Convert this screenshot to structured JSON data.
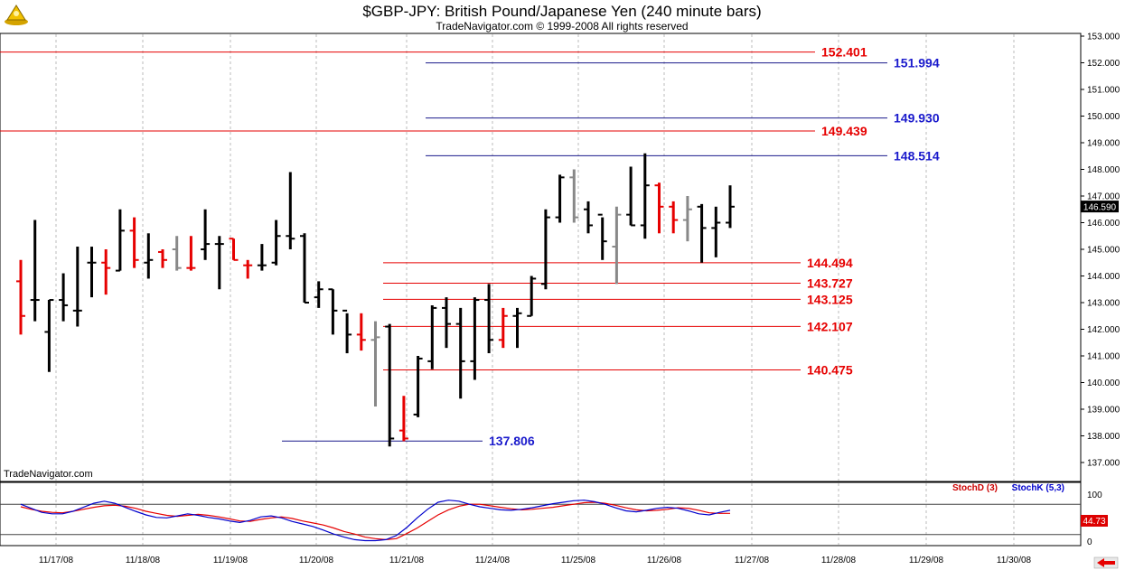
{
  "chart_data": {
    "type": "ohlc",
    "title": "$GBP-JPY:  British Pound/Japanese Yen  (240 minute bars)",
    "subtitle": "TradeNavigator.com © 1999-2008 All rights reserved",
    "watermark": "TradeNavigator.com",
    "y_ticks": [
      "153.000",
      "152.000",
      "151.000",
      "150.000",
      "149.000",
      "148.000",
      "147.000",
      "146.000",
      "145.000",
      "144.000",
      "143.000",
      "142.000",
      "141.000",
      "140.000",
      "139.000",
      "138.000",
      "137.000"
    ],
    "ylim": [
      136.65,
      153.05
    ],
    "x_ticks": [
      "11/17/08",
      "11/18/08",
      "11/19/08",
      "11/20/08",
      "11/21/08",
      "11/24/08",
      "11/25/08",
      "11/26/08",
      "11/27/08",
      "11/28/08",
      "11/29/08",
      "11/30/08"
    ],
    "last_price": "146.590",
    "levels_red": [
      {
        "label": "152.401",
        "value": 152.401
      },
      {
        "label": "149.439",
        "value": 149.439
      },
      {
        "label": "144.494",
        "value": 144.494
      },
      {
        "label": "143.727",
        "value": 143.727
      },
      {
        "label": "143.125",
        "value": 143.125
      },
      {
        "label": "142.107",
        "value": 142.107
      },
      {
        "label": "140.475",
        "value": 140.475
      }
    ],
    "levels_blue": [
      {
        "label": "151.994",
        "value": 151.994
      },
      {
        "label": "149.930",
        "value": 149.93
      },
      {
        "label": "148.514",
        "value": 148.514
      },
      {
        "label": "137.806",
        "value": 137.806
      }
    ],
    "colors": {
      "up": "#000000",
      "down": "#e60000",
      "neutral": "#888888",
      "red_line": "#e60000",
      "blue_line": "#1a1a8c"
    },
    "bars": [
      {
        "o": 143.8,
        "h": 144.6,
        "l": 141.8,
        "c": 142.5,
        "col": "down"
      },
      {
        "o": 143.1,
        "h": 146.1,
        "l": 142.3,
        "c": 143.1,
        "col": "up"
      },
      {
        "o": 141.9,
        "h": 143.1,
        "l": 140.4,
        "c": 143.1,
        "col": "up"
      },
      {
        "o": 143.1,
        "h": 144.1,
        "l": 142.3,
        "c": 142.9,
        "col": "up"
      },
      {
        "o": 142.7,
        "h": 145.1,
        "l": 142.1,
        "c": 142.7,
        "col": "up"
      },
      {
        "o": 144.5,
        "h": 145.1,
        "l": 143.2,
        "c": 144.5,
        "col": "up"
      },
      {
        "o": 144.5,
        "h": 145.0,
        "l": 143.3,
        "c": 144.3,
        "col": "down"
      },
      {
        "o": 144.2,
        "h": 146.5,
        "l": 144.2,
        "c": 145.7,
        "col": "up"
      },
      {
        "o": 145.7,
        "h": 146.2,
        "l": 144.3,
        "c": 144.6,
        "col": "down"
      },
      {
        "o": 144.5,
        "h": 145.6,
        "l": 143.9,
        "c": 144.6,
        "col": "up"
      },
      {
        "o": 144.9,
        "h": 145.0,
        "l": 144.3,
        "c": 144.6,
        "col": "down"
      },
      {
        "o": 145.0,
        "h": 145.5,
        "l": 144.2,
        "c": 144.3,
        "col": "neutral"
      },
      {
        "o": 144.3,
        "h": 145.5,
        "l": 144.2,
        "c": 144.3,
        "col": "down"
      },
      {
        "o": 145.0,
        "h": 146.5,
        "l": 144.6,
        "c": 145.2,
        "col": "up"
      },
      {
        "o": 145.2,
        "h": 145.5,
        "l": 143.5,
        "c": 145.2,
        "col": "up"
      },
      {
        "o": 145.4,
        "h": 145.4,
        "l": 144.6,
        "c": 144.6,
        "col": "down"
      },
      {
        "o": 144.4,
        "h": 144.6,
        "l": 143.9,
        "c": 144.4,
        "col": "down"
      },
      {
        "o": 144.4,
        "h": 145.2,
        "l": 144.2,
        "c": 144.4,
        "col": "up"
      },
      {
        "o": 144.5,
        "h": 146.1,
        "l": 144.4,
        "c": 145.5,
        "col": "up"
      },
      {
        "o": 145.5,
        "h": 147.9,
        "l": 145.0,
        "c": 145.4,
        "col": "up"
      },
      {
        "o": 145.5,
        "h": 145.6,
        "l": 143.0,
        "c": 143.0,
        "col": "up"
      },
      {
        "o": 143.2,
        "h": 143.8,
        "l": 142.8,
        "c": 143.5,
        "col": "up"
      },
      {
        "o": 143.5,
        "h": 143.5,
        "l": 141.8,
        "c": 142.7,
        "col": "up"
      },
      {
        "o": 142.7,
        "h": 142.6,
        "l": 141.1,
        "c": 141.8,
        "col": "up"
      },
      {
        "o": 141.8,
        "h": 142.6,
        "l": 141.2,
        "c": 141.6,
        "col": "down"
      },
      {
        "o": 141.6,
        "h": 142.3,
        "l": 139.1,
        "c": 141.7,
        "col": "neutral"
      },
      {
        "o": 142.1,
        "h": 142.2,
        "l": 137.6,
        "c": 137.9,
        "col": "up"
      },
      {
        "o": 138.2,
        "h": 139.5,
        "l": 137.8,
        "c": 137.9,
        "col": "down"
      },
      {
        "o": 138.8,
        "h": 141.0,
        "l": 138.7,
        "c": 140.9,
        "col": "up"
      },
      {
        "o": 140.8,
        "h": 142.9,
        "l": 140.5,
        "c": 142.8,
        "col": "up"
      },
      {
        "o": 142.8,
        "h": 143.2,
        "l": 141.3,
        "c": 142.2,
        "col": "up"
      },
      {
        "o": 142.2,
        "h": 142.8,
        "l": 139.4,
        "c": 140.8,
        "col": "up"
      },
      {
        "o": 140.8,
        "h": 143.2,
        "l": 140.1,
        "c": 143.1,
        "col": "up"
      },
      {
        "o": 143.1,
        "h": 143.7,
        "l": 141.1,
        "c": 141.6,
        "col": "up"
      },
      {
        "o": 141.6,
        "h": 142.8,
        "l": 141.3,
        "c": 142.5,
        "col": "down"
      },
      {
        "o": 142.5,
        "h": 142.8,
        "l": 141.3,
        "c": 142.6,
        "col": "up"
      },
      {
        "o": 142.5,
        "h": 144.0,
        "l": 142.5,
        "c": 143.9,
        "col": "up"
      },
      {
        "o": 143.7,
        "h": 146.5,
        "l": 143.5,
        "c": 146.2,
        "col": "up"
      },
      {
        "o": 146.2,
        "h": 147.8,
        "l": 146.0,
        "c": 147.7,
        "col": "up"
      },
      {
        "o": 147.7,
        "h": 148.0,
        "l": 146.0,
        "c": 146.2,
        "col": "neutral"
      },
      {
        "o": 146.5,
        "h": 146.8,
        "l": 145.6,
        "c": 145.9,
        "col": "up"
      },
      {
        "o": 146.3,
        "h": 146.2,
        "l": 144.6,
        "c": 145.3,
        "col": "up"
      },
      {
        "o": 145.1,
        "h": 146.6,
        "l": 143.7,
        "c": 146.3,
        "col": "neutral"
      },
      {
        "o": 146.3,
        "h": 148.1,
        "l": 145.9,
        "c": 145.9,
        "col": "up"
      },
      {
        "o": 145.9,
        "h": 148.6,
        "l": 145.4,
        "c": 147.4,
        "col": "up"
      },
      {
        "o": 147.4,
        "h": 147.5,
        "l": 145.6,
        "c": 146.6,
        "col": "down"
      },
      {
        "o": 146.6,
        "h": 146.8,
        "l": 145.6,
        "c": 146.1,
        "col": "down"
      },
      {
        "o": 146.1,
        "h": 147.0,
        "l": 145.3,
        "c": 146.5,
        "col": "neutral"
      },
      {
        "o": 146.6,
        "h": 146.7,
        "l": 144.5,
        "c": 145.8,
        "col": "up"
      },
      {
        "o": 145.8,
        "h": 146.6,
        "l": 144.7,
        "c": 146.0,
        "col": "up"
      },
      {
        "o": 146.0,
        "h": 147.4,
        "l": 145.8,
        "c": 146.6,
        "col": "up"
      }
    ],
    "oscillator": {
      "legend_d": "StochD (3)",
      "legend_k": "StochK (5,3)",
      "top_tick": "100",
      "bottom_tick": "0",
      "value_badge": "44.73",
      "ylim": [
        0,
        100
      ],
      "ref_lines": [
        80,
        20
      ],
      "stochD": [
        75,
        70,
        66,
        64,
        63,
        66,
        70,
        74,
        77,
        78,
        76,
        72,
        66,
        62,
        58,
        56,
        58,
        60,
        58,
        55,
        51,
        47,
        46,
        50,
        53,
        55,
        52,
        47,
        43,
        39,
        33,
        26,
        21,
        15,
        12,
        10,
        12,
        22,
        33,
        46,
        59,
        69,
        76,
        80,
        80,
        77,
        74,
        71,
        69,
        70,
        72,
        74,
        77,
        80,
        83,
        84,
        82,
        78,
        73,
        69,
        67,
        68,
        70,
        73,
        72,
        68,
        63,
        62,
        62
      ],
      "stochK": [
        80,
        72,
        64,
        61,
        61,
        66,
        74,
        82,
        86,
        82,
        74,
        66,
        59,
        54,
        53,
        57,
        61,
        58,
        54,
        51,
        47,
        44,
        48,
        55,
        57,
        53,
        46,
        41,
        36,
        29,
        21,
        15,
        10,
        8,
        8,
        10,
        18,
        34,
        53,
        70,
        84,
        88,
        86,
        80,
        75,
        72,
        69,
        68,
        70,
        73,
        77,
        81,
        84,
        87,
        88,
        85,
        80,
        73,
        67,
        65,
        68,
        72,
        74,
        72,
        67,
        61,
        59,
        64,
        68
      ]
    }
  }
}
